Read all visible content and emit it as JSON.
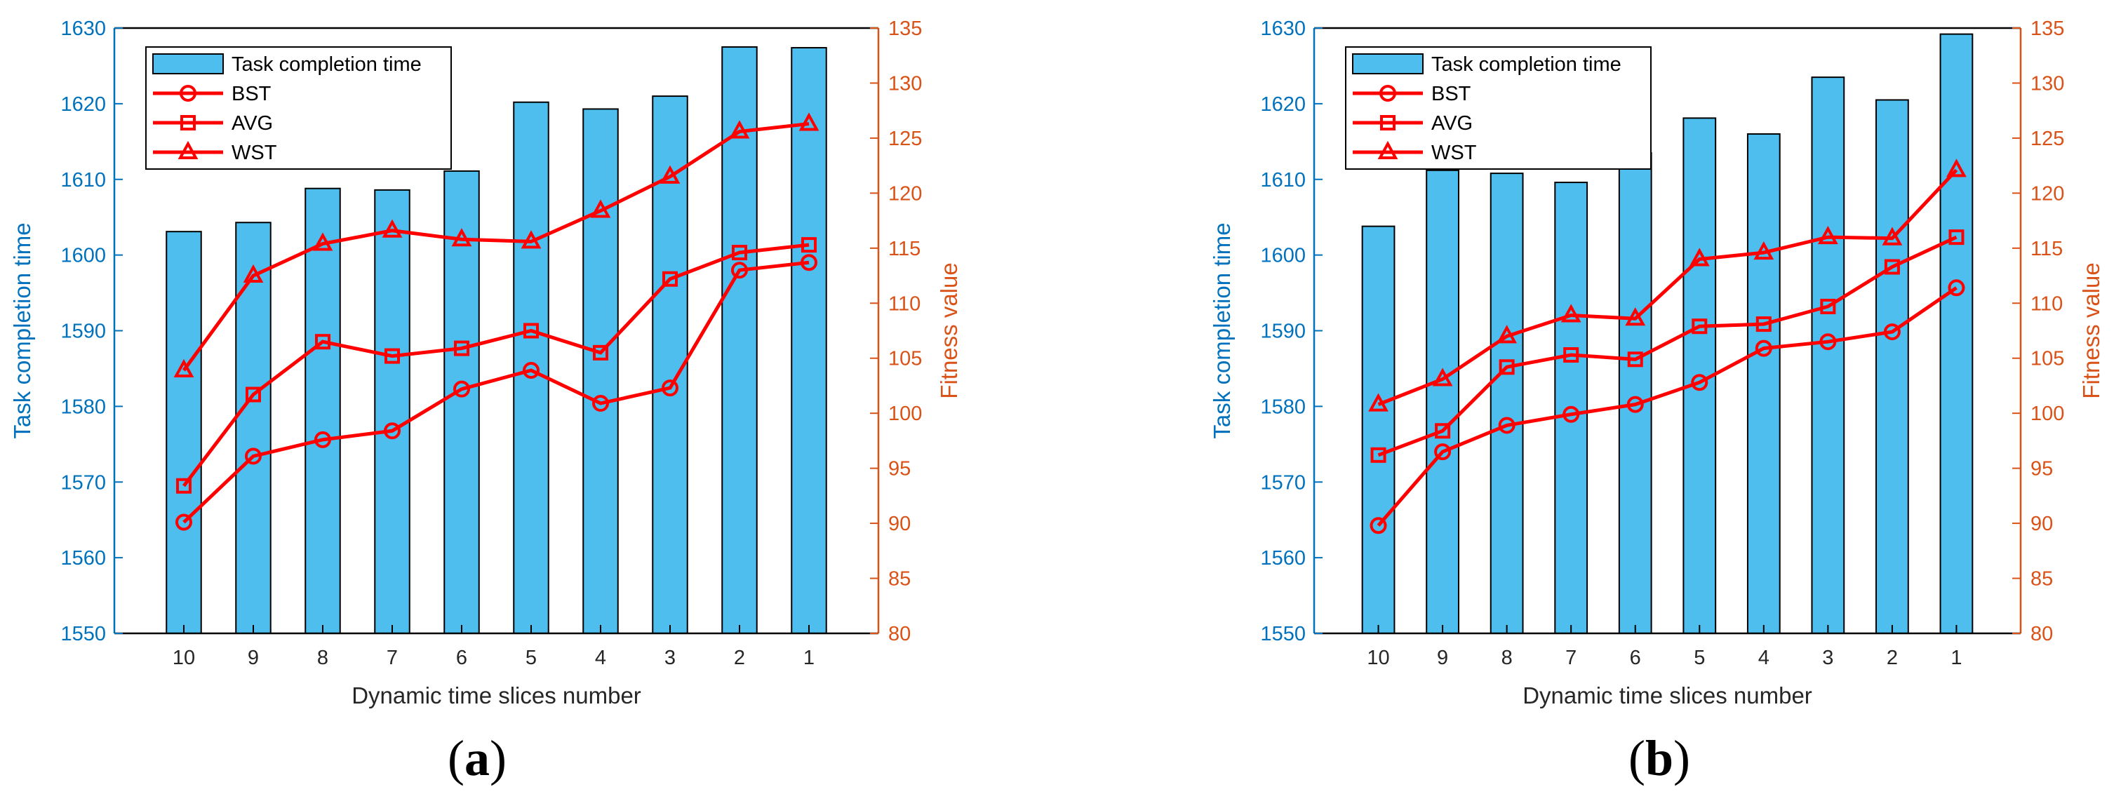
{
  "colors": {
    "bar": "#4DBEEE",
    "line": "#FF0000",
    "left_axis": "#0072BD",
    "right_axis": "#D95319",
    "frame": "#000000"
  },
  "chart_data": [
    {
      "type": "bar+line",
      "caption_letter": "a",
      "xlabel": "Dynamic time slices number",
      "ylabel_left": "Task completion time",
      "ylabel_right": "Fitness value",
      "categories": [
        "10",
        "9",
        "8",
        "7",
        "6",
        "5",
        "4",
        "3",
        "2",
        "1"
      ],
      "ylim_left": [
        1550,
        1630
      ],
      "yticks_left": [
        1550,
        1560,
        1570,
        1580,
        1590,
        1600,
        1610,
        1620,
        1630
      ],
      "ylim_right": [
        80,
        135
      ],
      "yticks_right": [
        80,
        85,
        90,
        95,
        100,
        105,
        110,
        115,
        120,
        125,
        130,
        135
      ],
      "bars": {
        "name": "Task completion time",
        "values": [
          1603.1,
          1604.3,
          1608.8,
          1608.6,
          1611.1,
          1620.2,
          1619.3,
          1621.0,
          1627.5,
          1627.4
        ]
      },
      "series": [
        {
          "name": "BST",
          "marker": "circle",
          "values": [
            90.1,
            96.1,
            97.6,
            98.4,
            102.2,
            103.9,
            100.9,
            102.3,
            113.0,
            113.7
          ]
        },
        {
          "name": "AVG",
          "marker": "square",
          "values": [
            93.4,
            101.7,
            106.5,
            105.2,
            105.9,
            107.5,
            105.5,
            112.2,
            114.6,
            115.3
          ]
        },
        {
          "name": "WST",
          "marker": "triangle",
          "values": [
            103.9,
            112.5,
            115.4,
            116.6,
            115.8,
            115.6,
            118.4,
            121.5,
            125.6,
            126.3
          ]
        }
      ],
      "legend": {
        "position": "top-left",
        "entries": [
          "Task completion time",
          "BST",
          "AVG",
          "WST"
        ]
      }
    },
    {
      "type": "bar+line",
      "caption_letter": "b",
      "xlabel": "Dynamic time slices number",
      "ylabel_left": "Task completion time",
      "ylabel_right": "Fitness value",
      "categories": [
        "10",
        "9",
        "8",
        "7",
        "6",
        "5",
        "4",
        "3",
        "2",
        "1"
      ],
      "ylim_left": [
        1550,
        1630
      ],
      "yticks_left": [
        1550,
        1560,
        1570,
        1580,
        1590,
        1600,
        1610,
        1620,
        1630
      ],
      "ylim_right": [
        80,
        135
      ],
      "yticks_right": [
        80,
        85,
        90,
        95,
        100,
        105,
        110,
        115,
        120,
        125,
        130,
        135
      ],
      "bars": {
        "name": "Task completion time",
        "values": [
          1603.8,
          1611.2,
          1610.8,
          1609.6,
          1613.5,
          1618.1,
          1616.0,
          1623.5,
          1620.5,
          1629.2
        ]
      },
      "series": [
        {
          "name": "BST",
          "marker": "circle",
          "values": [
            89.8,
            96.5,
            98.9,
            99.9,
            100.8,
            102.8,
            105.9,
            106.5,
            107.4,
            111.4
          ]
        },
        {
          "name": "AVG",
          "marker": "square",
          "values": [
            96.2,
            98.4,
            104.2,
            105.3,
            104.9,
            107.9,
            108.1,
            109.7,
            113.3,
            116.0
          ]
        },
        {
          "name": "WST",
          "marker": "triangle",
          "values": [
            100.8,
            103.1,
            107.0,
            108.9,
            108.6,
            114.0,
            114.6,
            116.0,
            115.9,
            122.1
          ]
        }
      ],
      "legend": {
        "position": "top-left",
        "entries": [
          "Task completion time",
          "BST",
          "AVG",
          "WST"
        ]
      }
    }
  ]
}
